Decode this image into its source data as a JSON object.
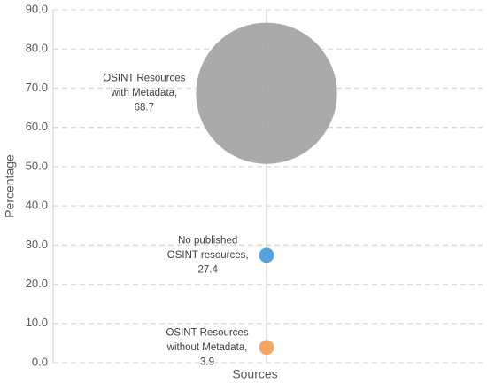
{
  "chart_data": {
    "type": "bubble",
    "x_label": "Sources",
    "y_label": "Percentage",
    "ylim": [
      0,
      90
    ],
    "yticks": [
      {
        "value": 0,
        "label": "0.0"
      },
      {
        "value": 10,
        "label": "10.0"
      },
      {
        "value": 20,
        "label": "20.0"
      },
      {
        "value": 30,
        "label": "30.0"
      },
      {
        "value": 40,
        "label": "40.0"
      },
      {
        "value": 50,
        "label": "50.0"
      },
      {
        "value": 60,
        "label": "60.0"
      },
      {
        "value": 70,
        "label": "70.0"
      },
      {
        "value": 80,
        "label": "80.0"
      },
      {
        "value": 90,
        "label": "90.0"
      }
    ],
    "grid": true,
    "series": [
      {
        "color": "#a5a5a5",
        "values": [
          68.7
        ],
        "sizes": [
          36
        ],
        "value_labels": [
          "OSINT Resources with Metadata, 68.7"
        ]
      },
      {
        "color": "#4a9fdc",
        "values": [
          27.4
        ],
        "sizes": [
          3.8
        ],
        "value_labels": [
          "No published OSINT resources, 27.4"
        ]
      },
      {
        "color": "#f4a15d",
        "values": [
          3.9
        ],
        "sizes": [
          3.8
        ],
        "value_labels": [
          "OSINT Resources without Metadata, 3.9"
        ]
      }
    ]
  }
}
